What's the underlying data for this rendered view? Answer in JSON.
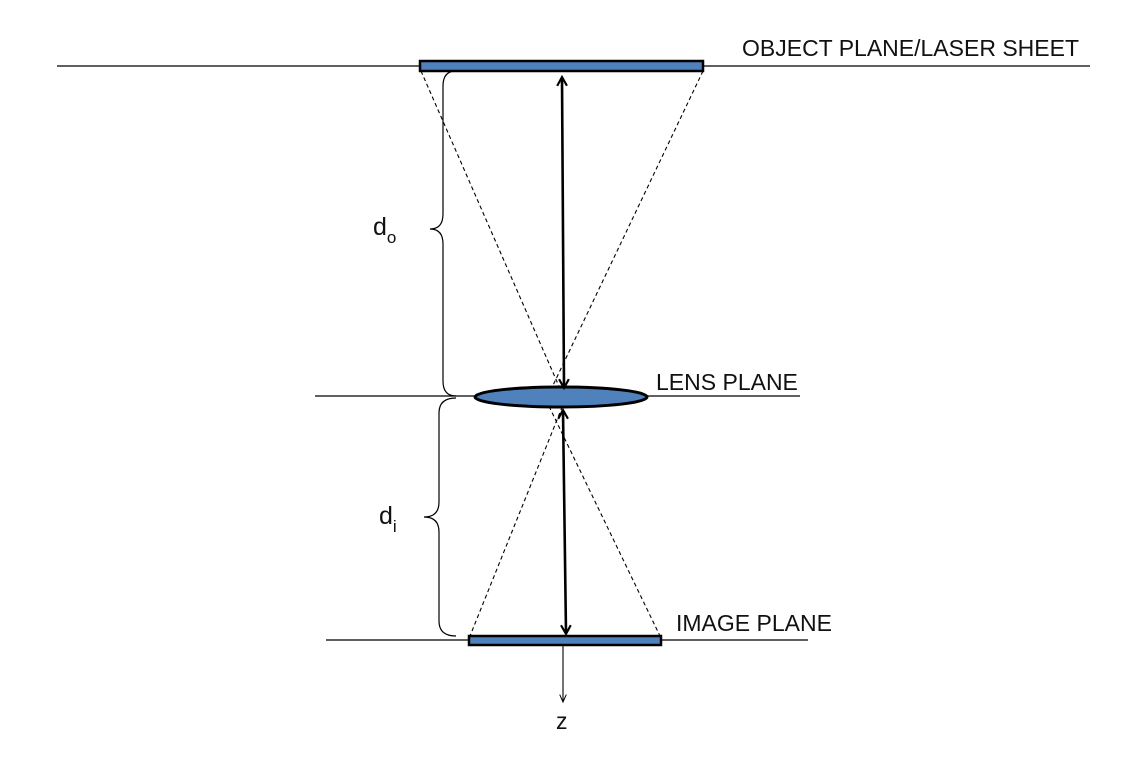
{
  "labels": {
    "object_plane": "OBJECT PLANE/LASER SHEET",
    "lens_plane": "LENS PLANE",
    "image_plane": "IMAGE PLANE",
    "axis": "z"
  },
  "distances": {
    "object": {
      "symbol": "d",
      "subscript": "o"
    },
    "image": {
      "symbol": "d",
      "subscript": "i"
    }
  },
  "colors": {
    "plate_fill": "#4f81bd",
    "outline": "#000000"
  }
}
